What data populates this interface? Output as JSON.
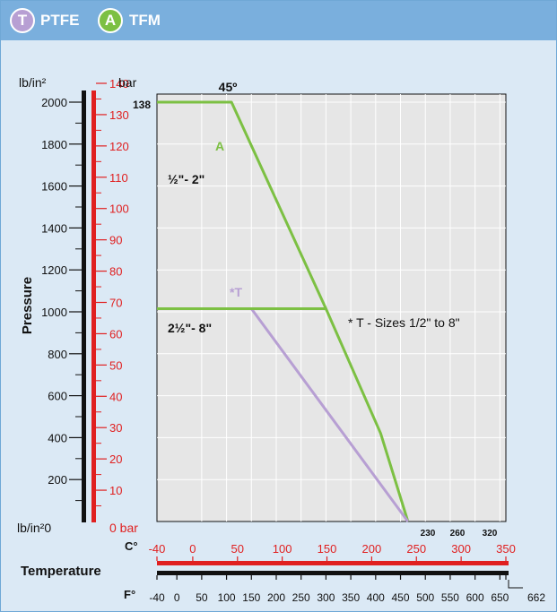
{
  "legend": [
    {
      "badge": "T",
      "label": "PTFE",
      "color": "#b79fd3"
    },
    {
      "badge": "A",
      "label": "TFM",
      "color": "#7cc043"
    }
  ],
  "chart_data": {
    "type": "line",
    "title": "",
    "xlabel": "Temperature",
    "ylabel": "Pressure",
    "x_unit_c": "C°",
    "x_unit_f": "F°",
    "y_unit_psi": "lb/in²",
    "y_unit_bar": "bar",
    "bottom_psi_label": "lb/in²0",
    "bottom_bar_label": "0 bar",
    "psi_ticks": [
      "2000",
      "1800",
      "1600",
      "1400",
      "1200",
      "1000",
      "800",
      "600",
      "400",
      "200"
    ],
    "bar_ticks": [
      "140",
      "130",
      "120",
      "110",
      "100",
      "90",
      "80",
      "70",
      "60",
      "50",
      "40",
      "30",
      "20",
      "10"
    ],
    "c_ticks": [
      "-40",
      "0",
      "50",
      "100",
      "150",
      "200",
      "250",
      "300",
      "350"
    ],
    "f_ticks": [
      "-40",
      "0",
      "50",
      "100",
      "150",
      "200",
      "250",
      "300",
      "350",
      "400",
      "450",
      "500",
      "550",
      "600",
      "650",
      "662"
    ],
    "top_f_labels": [
      "230",
      "260",
      "320"
    ],
    "xlim_f": [
      -40,
      662
    ],
    "ylim_psi": [
      0,
      2050
    ],
    "grid": true,
    "series": [
      {
        "name": "A",
        "color": "#7cc043",
        "points": [
          [
            -40,
            2000
          ],
          [
            110,
            2000
          ],
          [
            300,
            1015
          ],
          [
            410,
            420
          ],
          [
            465,
            0
          ]
        ]
      },
      {
        "name": "*T",
        "color": "#b79fd3",
        "points": [
          [
            100,
            1015
          ],
          [
            150,
            1015
          ],
          [
            465,
            0
          ]
        ]
      },
      {
        "color": "#7cc043",
        "points": [
          [
            -40,
            1015
          ],
          [
            300,
            1015
          ]
        ]
      }
    ],
    "annotations": {
      "angle": "45º",
      "max_bar": "138",
      "size_a": "½\"- 2\"",
      "size_b": "2½\"- 8\"",
      "footnote": "* T - Sizes 1/2\" to 8\""
    }
  }
}
